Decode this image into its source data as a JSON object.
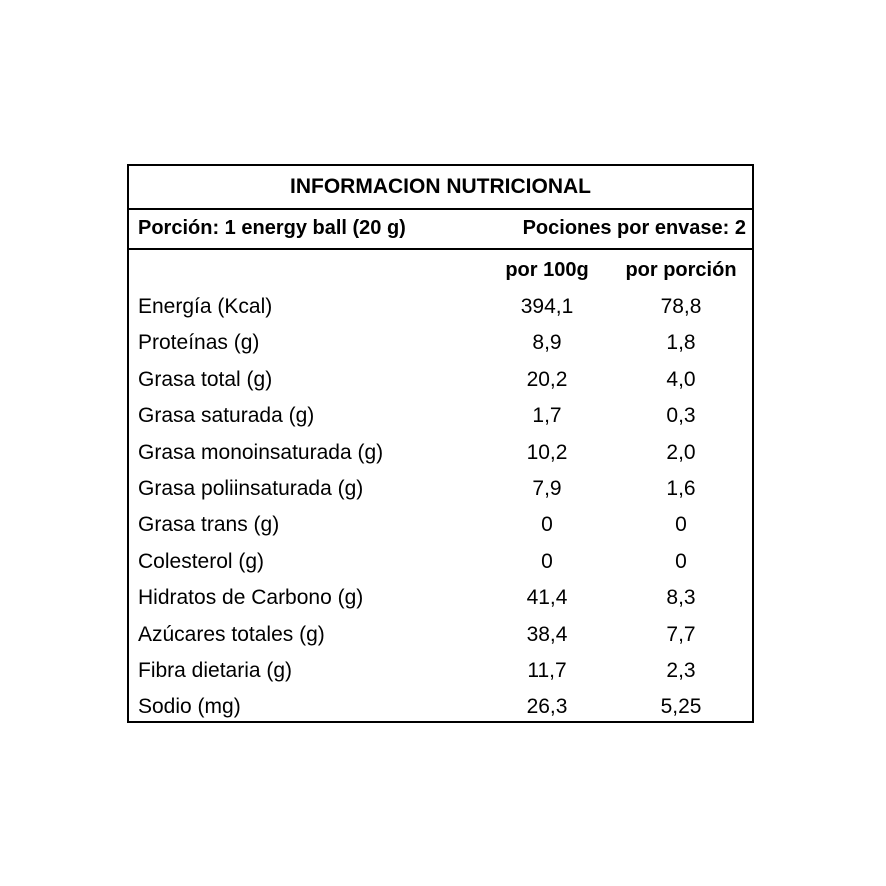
{
  "title": "INFORMACION NUTRICIONAL",
  "portion": "Porción: 1 energy ball (20 g)",
  "servings": "Pociones por envase: 2",
  "columns": {
    "per100": "por 100g",
    "perPortion": "por porción"
  },
  "rows": [
    {
      "label": "Energía (Kcal)",
      "per100": "394,1",
      "perPortion": "78,8"
    },
    {
      "label": "Proteínas (g)",
      "per100": "8,9",
      "perPortion": "1,8"
    },
    {
      "label": "Grasa total (g)",
      "per100": "20,2",
      "perPortion": "4,0"
    },
    {
      "label": "Grasa saturada (g)",
      "per100": "1,7",
      "perPortion": "0,3"
    },
    {
      "label": "Grasa monoinsaturada (g)",
      "per100": "10,2",
      "perPortion": "2,0"
    },
    {
      "label": "Grasa poliinsaturada (g)",
      "per100": "7,9",
      "perPortion": "1,6"
    },
    {
      "label": "Grasa trans (g)",
      "per100": "0",
      "perPortion": "0"
    },
    {
      "label": "Colesterol (g)",
      "per100": "0",
      "perPortion": "0"
    },
    {
      "label": "Hidratos de Carbono (g)",
      "per100": "41,4",
      "perPortion": "8,3"
    },
    {
      "label": "Azúcares totales (g)",
      "per100": "38,4",
      "perPortion": "7,7"
    },
    {
      "label": "Fibra dietaria (g)",
      "per100": "11,7",
      "perPortion": "2,3"
    },
    {
      "label": "Sodio (mg)",
      "per100": "26,3",
      "perPortion": "5,25"
    }
  ]
}
